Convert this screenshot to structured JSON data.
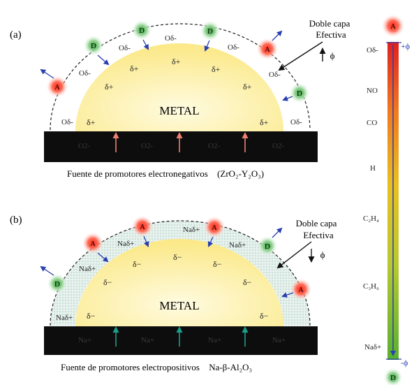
{
  "panel_a": {
    "label": "(a)",
    "metal_label": "METAL",
    "caption": "Fuente de promotores electronegativos",
    "caption_formula": "(ZrO₂-Y₂O₃)",
    "double_layer_line1": "Doble capa",
    "double_layer_line2": "Efectiva",
    "phi_label": "ϕ",
    "surface_ion": "Oδ-",
    "metal_charge": "δ+",
    "support_ion": "O2-",
    "donor_label": "D",
    "acceptor_label": "A"
  },
  "panel_b": {
    "label": "(b)",
    "metal_label": "METAL",
    "caption": "Fuente de promotores electropositivos",
    "caption_formula": "Na-β-Al₂O₃",
    "double_layer_line1": "Doble capa",
    "double_layer_line2": "Efectiva",
    "phi_label": "ϕ",
    "surface_ion": "Naδ+",
    "metal_charge": "δ−",
    "support_ion": "Na+",
    "donor_label": "D",
    "acceptor_label": "A"
  },
  "scale": {
    "top_badge": "A",
    "bottom_badge": "D",
    "plus_phi": "+ϕ",
    "minus_phi": "-ϕ",
    "species": [
      "Oδ-",
      "NO",
      "CO",
      "H",
      "C₂H₄",
      "C₃H₆",
      "Naδ+"
    ]
  },
  "colors": {
    "acceptor": "#ff3b2f",
    "donor": "#2f9e3a",
    "metal": "#fff3a8",
    "support": "#0d0d0d",
    "red_arrow": "#f08070",
    "teal_arrow": "#1aa08a",
    "blue_arrow": "#2a3fb0"
  }
}
